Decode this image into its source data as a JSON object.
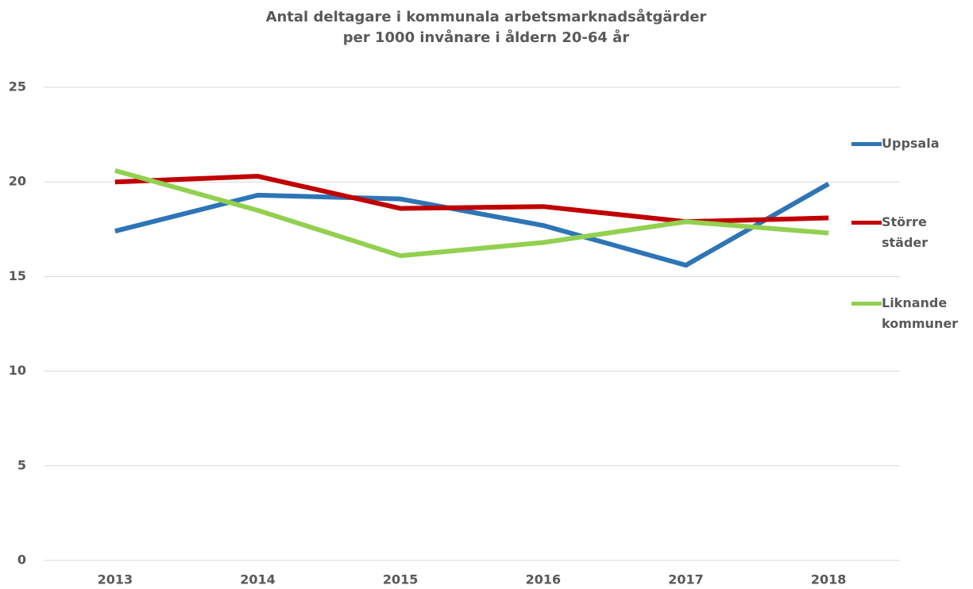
{
  "chart_data": {
    "type": "line",
    "title": "Antal deltagare i kommunala arbetsmarknadsåtgärder",
    "subtitle": "per 1000 invånare i åldern 20-64 år",
    "categories": [
      "2013",
      "2014",
      "2015",
      "2016",
      "2017",
      "2018"
    ],
    "series": [
      {
        "name": "Uppsala",
        "color": "#2e75b6",
        "values": [
          17.4,
          19.3,
          19.1,
          17.7,
          15.6,
          19.9
        ]
      },
      {
        "name": "Större städer",
        "color": "#c00000",
        "values": [
          20.0,
          20.3,
          18.6,
          18.7,
          17.9,
          18.1
        ]
      },
      {
        "name": "Liknande kommuner",
        "color": "#92d050",
        "values": [
          20.6,
          18.5,
          16.1,
          16.8,
          17.9,
          17.3
        ]
      }
    ],
    "ylim": [
      0,
      25
    ],
    "yticks": [
      0,
      5,
      10,
      15,
      20,
      25
    ],
    "grid": true,
    "legend": "right"
  }
}
